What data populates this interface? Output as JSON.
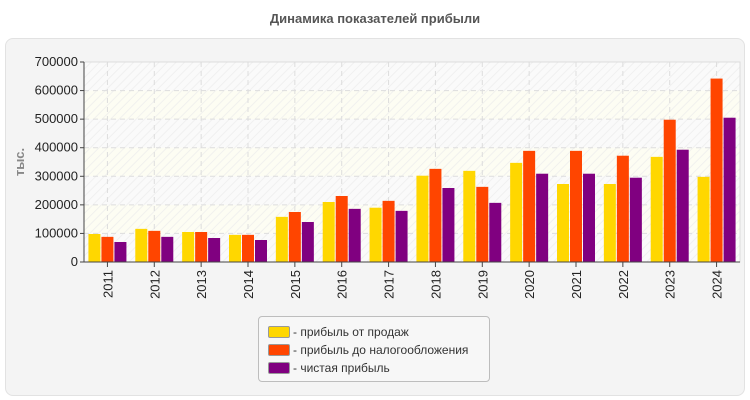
{
  "chart_data": {
    "type": "bar",
    "title": "Динамика показателей прибыли",
    "ylabel": "тыс.",
    "xlabel": "",
    "ylim": [
      0,
      700000
    ],
    "yticks": [
      0,
      100000,
      200000,
      300000,
      400000,
      500000,
      600000,
      700000
    ],
    "grid": true,
    "legend_position": "bottom",
    "categories": [
      "2011",
      "2012",
      "2013",
      "2014",
      "2015",
      "2016",
      "2017",
      "2018",
      "2019",
      "2020",
      "2021",
      "2022",
      "2023",
      "2024"
    ],
    "series": [
      {
        "name": "прибыль от продаж",
        "color": "#FFD700",
        "values": [
          98000,
          116000,
          105000,
          95000,
          158000,
          210000,
          190000,
          302000,
          319000,
          347000,
          273000,
          273000,
          368000,
          298000
        ]
      },
      {
        "name": "прибыль до налогообложения",
        "color": "#FF4500",
        "values": [
          88000,
          109000,
          105000,
          95000,
          175000,
          231000,
          214000,
          326000,
          263000,
          389000,
          389000,
          372000,
          498000,
          642000
        ]
      },
      {
        "name": "чистая прибыль",
        "color": "#800080",
        "values": [
          70000,
          88000,
          84000,
          77000,
          140000,
          186000,
          179000,
          259000,
          207000,
          309000,
          309000,
          295000,
          393000,
          505000
        ]
      }
    ]
  }
}
